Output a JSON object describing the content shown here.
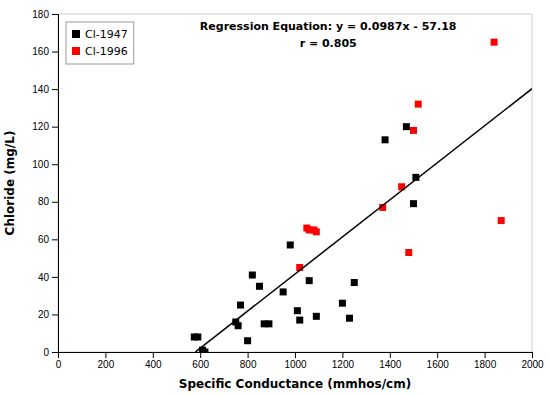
{
  "chart_data": {
    "type": "scatter",
    "xlabel": "Specific Conductance (mmhos/cm)",
    "ylabel": "Chloride (mg/L)",
    "xlim": [
      0,
      2000
    ],
    "ylim": [
      0,
      180
    ],
    "xticks": [
      0,
      200,
      400,
      600,
      800,
      1000,
      1200,
      1400,
      1600,
      1800,
      2000
    ],
    "yticks": [
      0,
      20,
      40,
      60,
      80,
      100,
      120,
      140,
      160,
      180
    ],
    "grid": false,
    "legend": "upper left",
    "series": [
      {
        "name": "Cl-1947",
        "color": "#000000",
        "marker": "square",
        "x": [
          575,
          590,
          610,
          620,
          750,
          760,
          770,
          800,
          820,
          850,
          870,
          890,
          950,
          980,
          1010,
          1020,
          1060,
          1090,
          1200,
          1230,
          1250,
          1380,
          1470,
          1500,
          1510
        ],
        "values": [
          8,
          8,
          1,
          0,
          16,
          14,
          25,
          6,
          41,
          35,
          15,
          15,
          32,
          57,
          22,
          17,
          38,
          19,
          26,
          18,
          37,
          113,
          120,
          79,
          93
        ]
      },
      {
        "name": "Cl-1996",
        "color": "#ff0000",
        "marker": "square",
        "x": [
          1020,
          1050,
          1060,
          1080,
          1090,
          1370,
          1450,
          1480,
          1500,
          1520,
          1840,
          1870
        ],
        "values": [
          45,
          66,
          65,
          65,
          64,
          77,
          88,
          53,
          118,
          132,
          165,
          70
        ]
      },
      {
        "type": "line",
        "color": "#000000",
        "line_style": "solid",
        "x": [
          580,
          2000
        ],
        "values": [
          0.066,
          140.22
        ]
      }
    ],
    "annotations": [
      "Regression Equation: y = 0.0987x - 57.18",
      "r = 0.805"
    ]
  }
}
